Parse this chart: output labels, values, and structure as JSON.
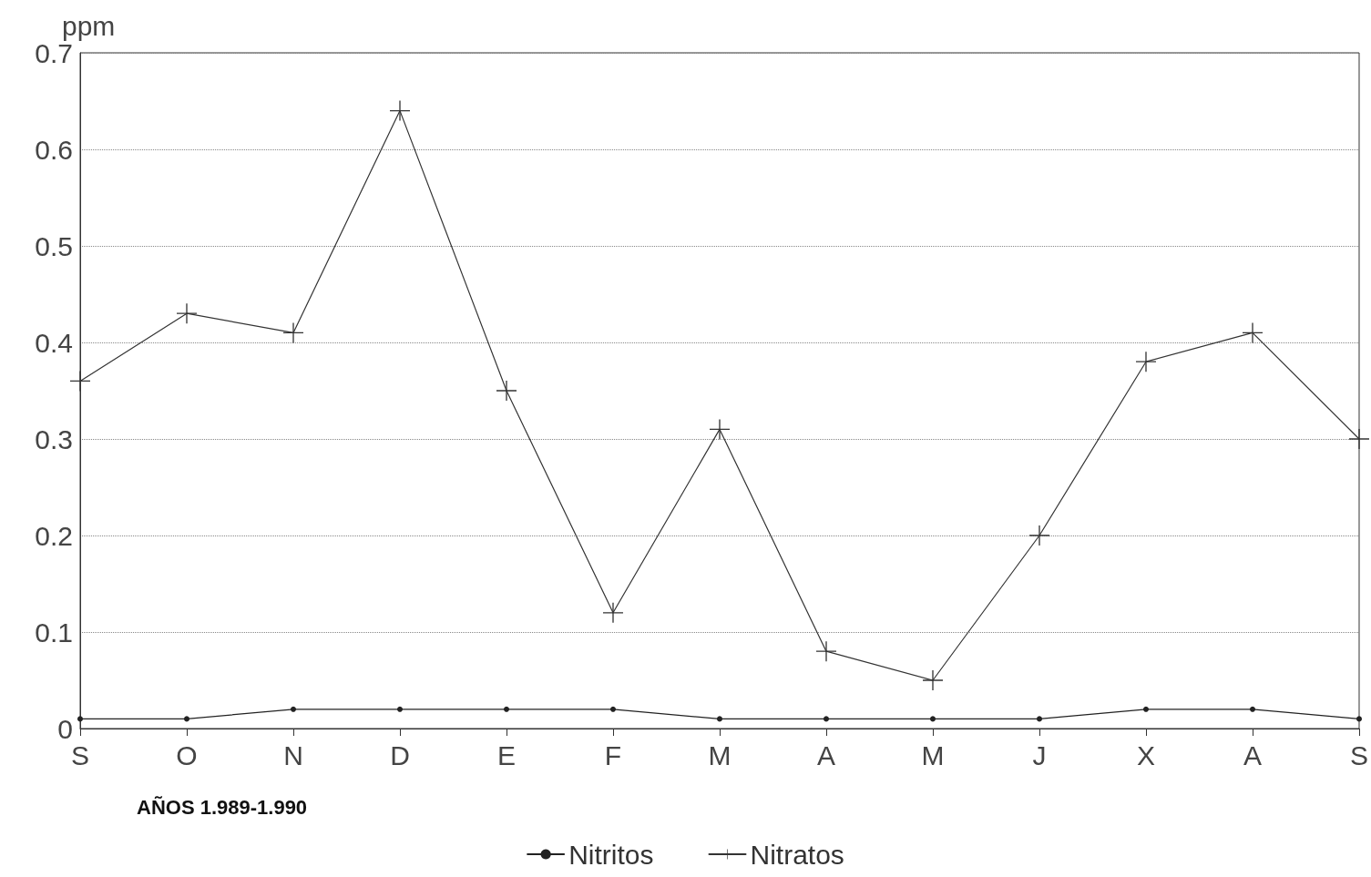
{
  "chart_data": {
    "type": "line",
    "ylabel": "ppm",
    "annotations": [
      "AÑOS 1.989-1.990"
    ],
    "categories": [
      "S",
      "O",
      "N",
      "D",
      "E",
      "F",
      "M",
      "A",
      "M",
      "J",
      "X",
      "A",
      "S"
    ],
    "series": [
      {
        "name": "Nitritos",
        "color": "#222222",
        "marker": "circle",
        "values": [
          0.01,
          0.01,
          0.02,
          0.02,
          0.02,
          0.02,
          0.01,
          0.01,
          0.01,
          0.01,
          0.02,
          0.02,
          0.01
        ]
      },
      {
        "name": "Nitratos",
        "color": "#333333",
        "marker": "cross",
        "values": [
          0.36,
          0.43,
          0.41,
          0.64,
          0.35,
          0.12,
          0.31,
          0.08,
          0.05,
          0.2,
          0.38,
          0.41,
          0.3
        ]
      }
    ],
    "ylim": [
      0,
      0.7
    ],
    "yticks": [
      0,
      0.1,
      0.2,
      0.3,
      0.4,
      0.5,
      0.6,
      0.7
    ],
    "grid": "y",
    "legend": "bottom",
    "line_style": "solid"
  }
}
